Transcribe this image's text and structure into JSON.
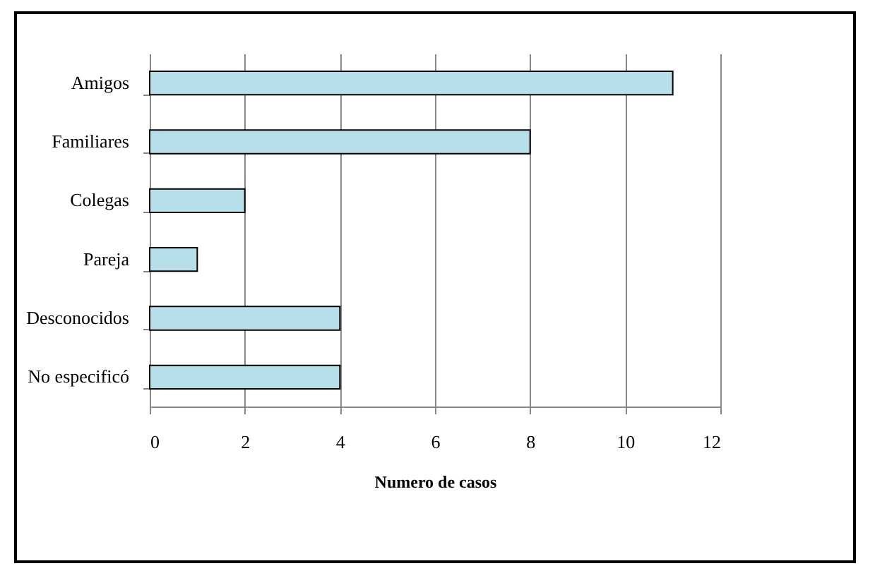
{
  "chart_data": {
    "type": "bar",
    "orientation": "horizontal",
    "xlabel": "Numero de casos",
    "categories": [
      "Amigos",
      "Familiares",
      "Colegas",
      "Pareja",
      "Desconocidos",
      "No especificó"
    ],
    "values": [
      11,
      8,
      2,
      1,
      4,
      4
    ],
    "color": "#b7dfea",
    "xlim": [
      0,
      12
    ],
    "xticks": [
      0,
      2,
      4,
      6,
      8,
      10,
      12
    ],
    "grid": "x"
  }
}
